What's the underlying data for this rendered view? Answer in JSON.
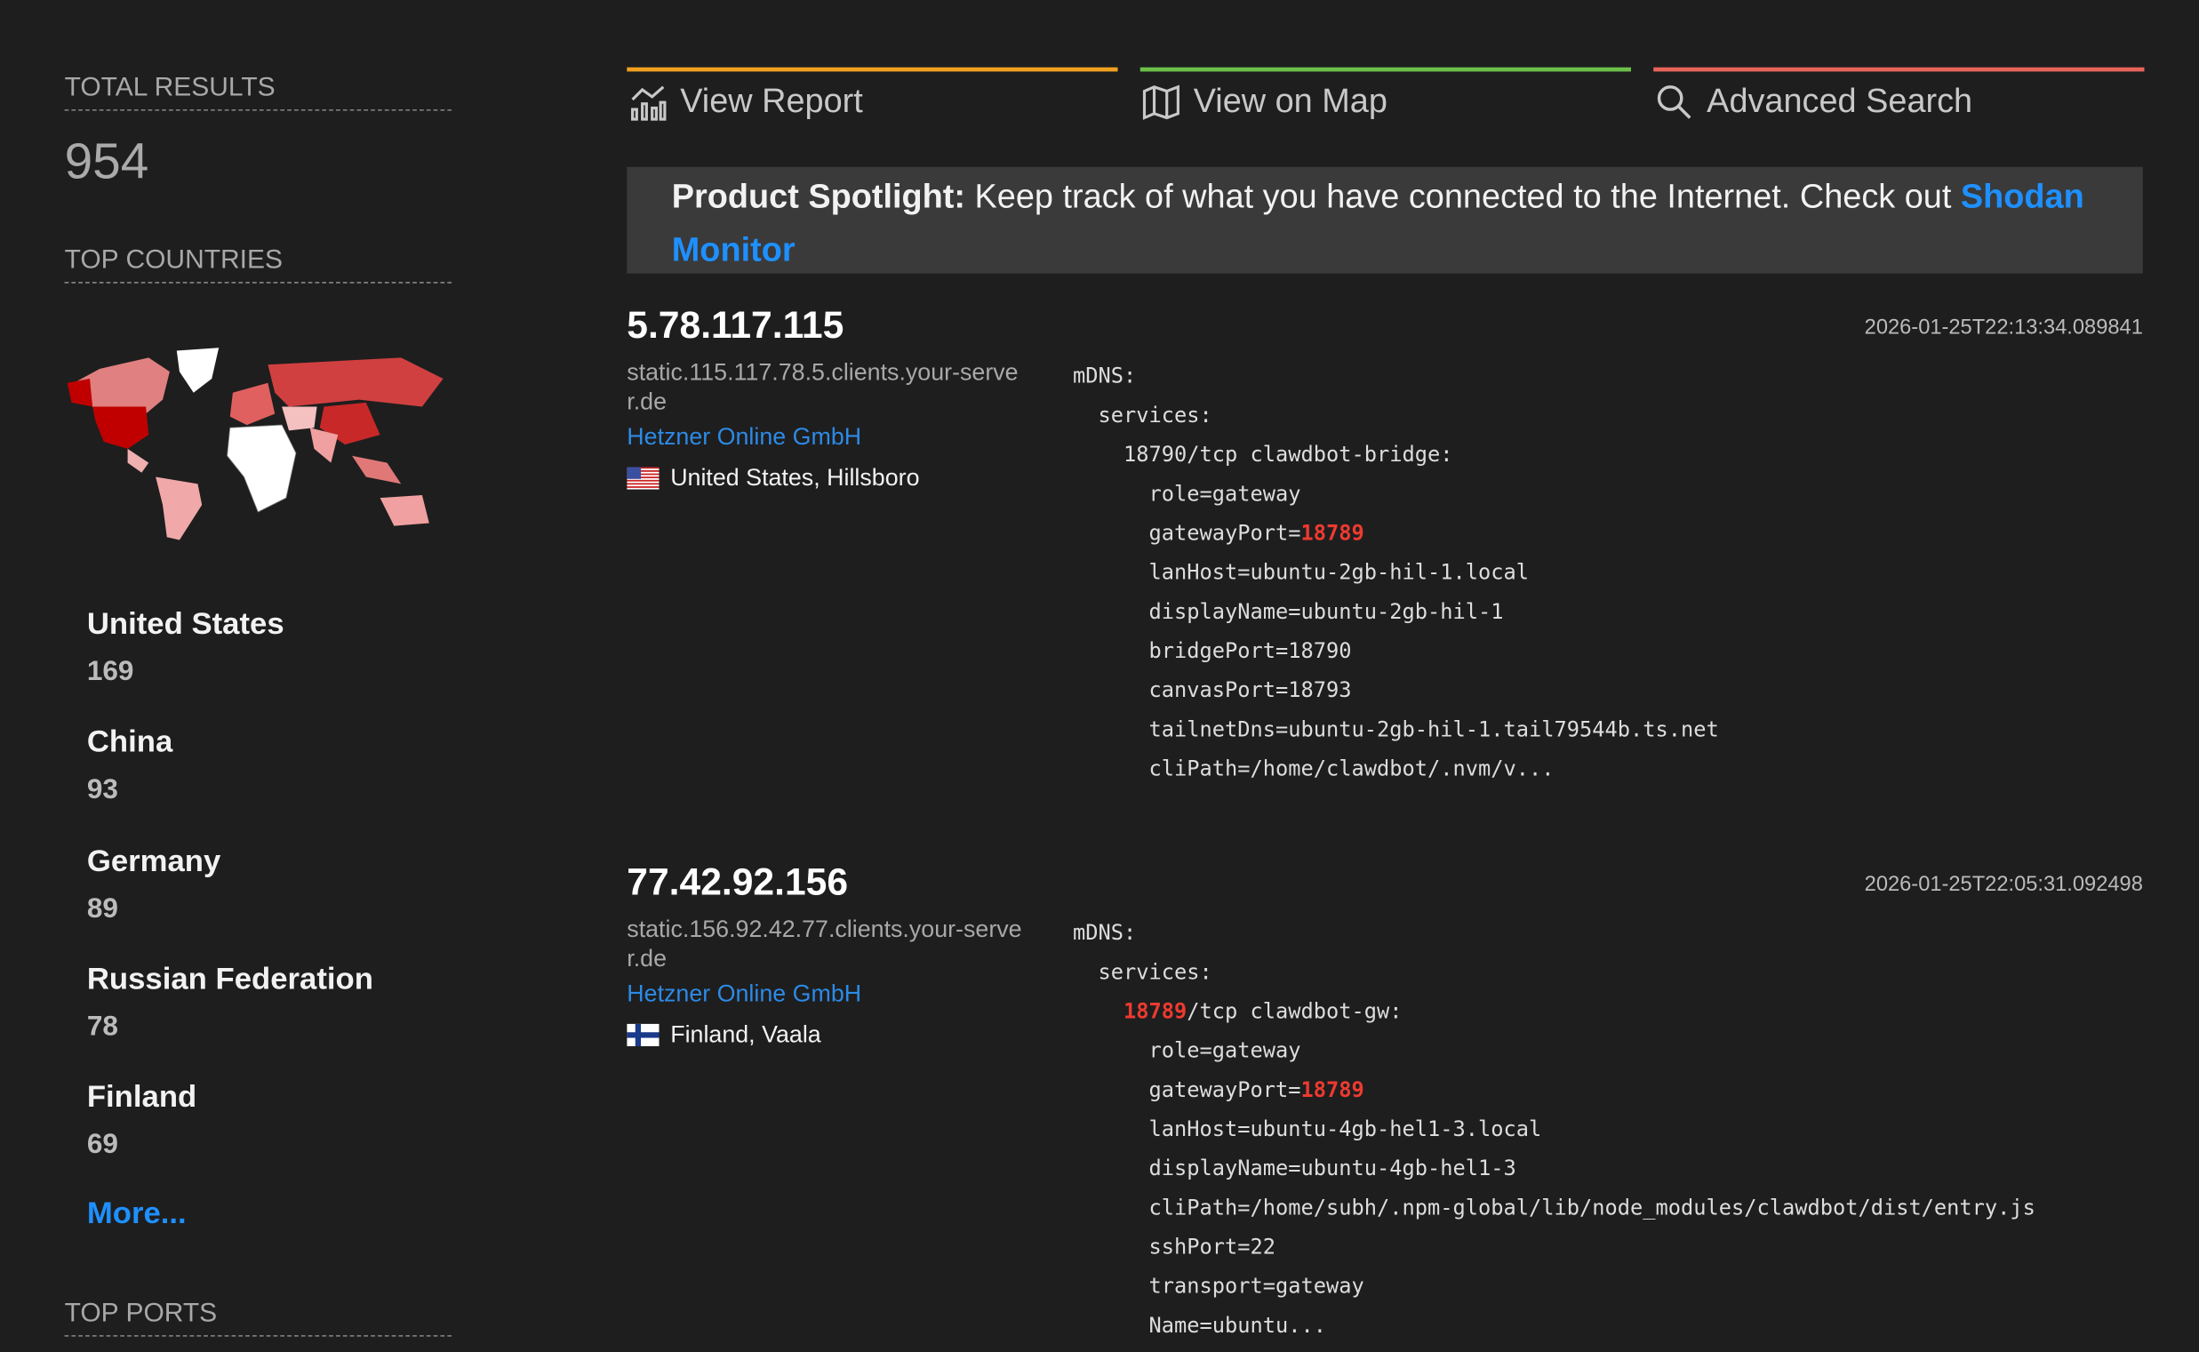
{
  "sidebar": {
    "total_label": "TOTAL RESULTS",
    "total": "954",
    "countries_label": "TOP COUNTRIES",
    "countries": [
      {
        "name": "United States",
        "count": "169"
      },
      {
        "name": "China",
        "count": "93"
      },
      {
        "name": "Germany",
        "count": "89"
      },
      {
        "name": "Russian Federation",
        "count": "78"
      },
      {
        "name": "Finland",
        "count": "69"
      }
    ],
    "more": "More...",
    "ports_label": "TOP PORTS"
  },
  "tabs": [
    {
      "label": "View Report",
      "icon": "chart-icon",
      "color": "#f0a020"
    },
    {
      "label": "View on Map",
      "icon": "map-icon",
      "color": "#6cc04a"
    },
    {
      "label": "Advanced Search",
      "icon": "search-icon",
      "color": "#e8645a"
    }
  ],
  "spotlight": {
    "title": "Product Spotlight:",
    "text": " Keep track of what you have connected to the Internet. Check out ",
    "link": "Shodan Monitor"
  },
  "results": [
    {
      "ip": "5.78.117.115",
      "hostname": "static.115.117.78.5.clients.your-server.de",
      "org": "Hetzner Online GmbH",
      "country": "United States",
      "city": "Hillsboro",
      "flag": "us",
      "timestamp": "2026-01-25T22:13:34.089841",
      "banner": [
        {
          "i": 0,
          "t": "mDNS:"
        },
        {
          "i": 1,
          "t": "services:"
        },
        {
          "i": 2,
          "t": "18790/tcp clawdbot-bridge:"
        },
        {
          "i": 3,
          "t": "role=gateway"
        },
        {
          "i": 3,
          "t": "gatewayPort=",
          "h": "18789"
        },
        {
          "i": 3,
          "t": "lanHost=ubuntu-2gb-hil-1.local"
        },
        {
          "i": 3,
          "t": "displayName=ubuntu-2gb-hil-1"
        },
        {
          "i": 3,
          "t": "bridgePort=18790"
        },
        {
          "i": 3,
          "t": "canvasPort=18793"
        },
        {
          "i": 3,
          "t": "tailnetDns=ubuntu-2gb-hil-1.tail79544b.ts.net"
        },
        {
          "i": 3,
          "t": "cliPath=/home/clawdbot/.nvm/v..."
        }
      ]
    },
    {
      "ip": "77.42.92.156",
      "hostname": "static.156.92.42.77.clients.your-server.de",
      "org": "Hetzner Online GmbH",
      "country": "Finland",
      "city": "Vaala",
      "flag": "fi",
      "timestamp": "2026-01-25T22:05:31.092498",
      "banner": [
        {
          "i": 0,
          "t": "mDNS:"
        },
        {
          "i": 1,
          "t": "services:"
        },
        {
          "i": 2,
          "h0": "18789",
          "t": "/tcp clawdbot-gw:"
        },
        {
          "i": 3,
          "t": "role=gateway"
        },
        {
          "i": 3,
          "t": "gatewayPort=",
          "h": "18789"
        },
        {
          "i": 3,
          "t": "lanHost=ubuntu-4gb-hel1-3.local"
        },
        {
          "i": 3,
          "t": "displayName=ubuntu-4gb-hel1-3"
        },
        {
          "i": 3,
          "t": "cliPath=/home/subh/.npm-global/lib/node_modules/clawdbot/dist/entry.js"
        },
        {
          "i": 3,
          "t": "sshPort=22"
        },
        {
          "i": 3,
          "t": "transport=gateway"
        },
        {
          "i": 3,
          "t": "Name=ubuntu..."
        }
      ]
    }
  ],
  "colors": {
    "background": "#1e1e1e",
    "link": "#2d8ae6",
    "highlight": "#ee3a30",
    "spotlight_bg": "#3a3a3a"
  }
}
